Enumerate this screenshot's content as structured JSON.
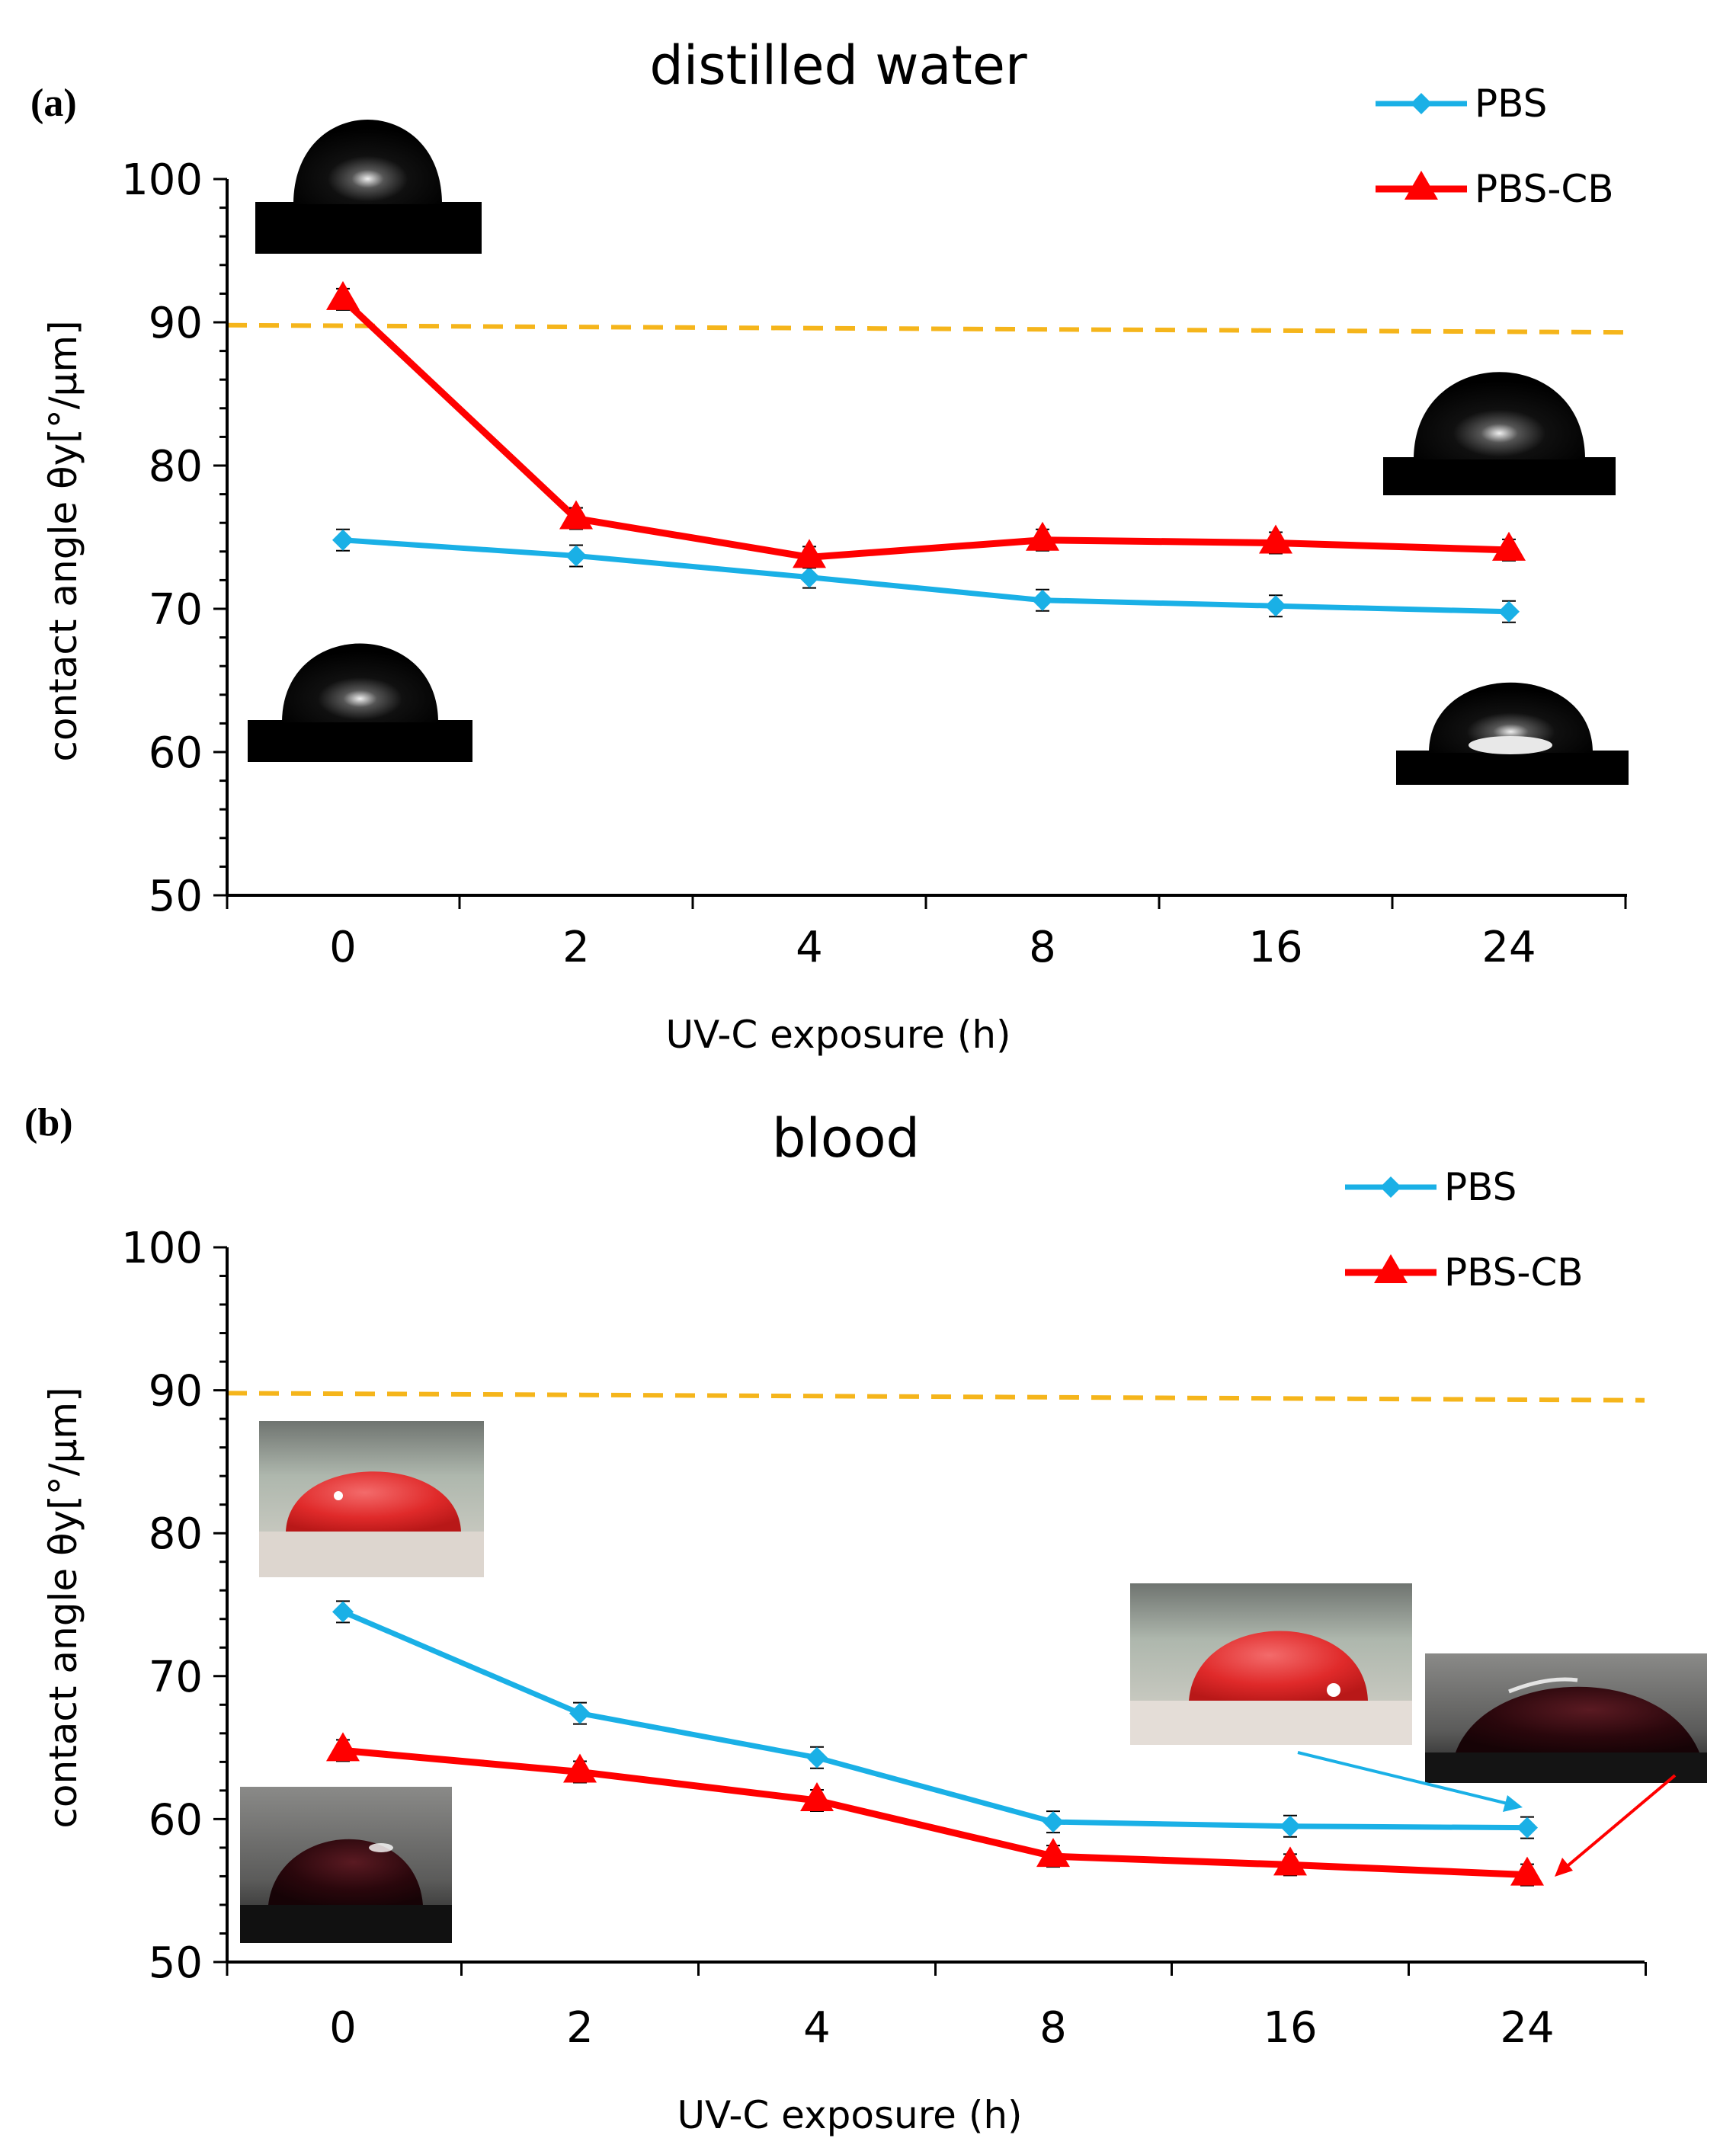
{
  "figure": {
    "panels": [
      {
        "label": "(a)",
        "title": "distilled water",
        "legend": [
          "PBS",
          "PBS-CB"
        ]
      },
      {
        "label": "(b)",
        "title": "blood",
        "legend": [
          "PBS",
          "PBS-CB"
        ]
      }
    ]
  },
  "colors": {
    "pbs": "#1ab0e6",
    "pbs_cb": "#ff0000",
    "reference_line": "#f5b51b",
    "axis": "#000000"
  },
  "chart_data": [
    {
      "type": "line",
      "title": "distilled water",
      "panel_label": "(a)",
      "xlabel": "UV-C exposure (h)",
      "ylabel": "contact angle θy[°/μm]",
      "categories": [
        "0",
        "2",
        "4",
        "8",
        "16",
        "24"
      ],
      "ylim": [
        50,
        100
      ],
      "yticks": [
        50,
        60,
        70,
        80,
        90,
        100
      ],
      "series": [
        {
          "name": "PBS",
          "values": [
            74.8,
            73.7,
            72.2,
            70.6,
            70.2,
            69.8
          ]
        },
        {
          "name": "PBS-CB",
          "values": [
            91.6,
            76.3,
            73.6,
            74.8,
            74.6,
            74.1
          ]
        }
      ],
      "reference_line": {
        "start": 89.8,
        "end": 89.3
      },
      "legend_position": "top-right"
    },
    {
      "type": "line",
      "title": "blood",
      "panel_label": "(b)",
      "xlabel": "UV-C exposure (h)",
      "ylabel": "contact angle θy[°/μm]",
      "categories": [
        "0",
        "2",
        "4",
        "8",
        "16",
        "24"
      ],
      "ylim": [
        50,
        100
      ],
      "yticks": [
        50,
        60,
        70,
        80,
        90,
        100
      ],
      "series": [
        {
          "name": "PBS",
          "values": [
            74.5,
            67.4,
            64.3,
            59.8,
            59.5,
            59.4
          ]
        },
        {
          "name": "PBS-CB",
          "values": [
            64.8,
            63.3,
            61.3,
            57.4,
            56.8,
            56.1
          ]
        }
      ],
      "reference_line": {
        "start": 89.8,
        "end": 89.3
      },
      "legend_position": "top-right"
    }
  ]
}
